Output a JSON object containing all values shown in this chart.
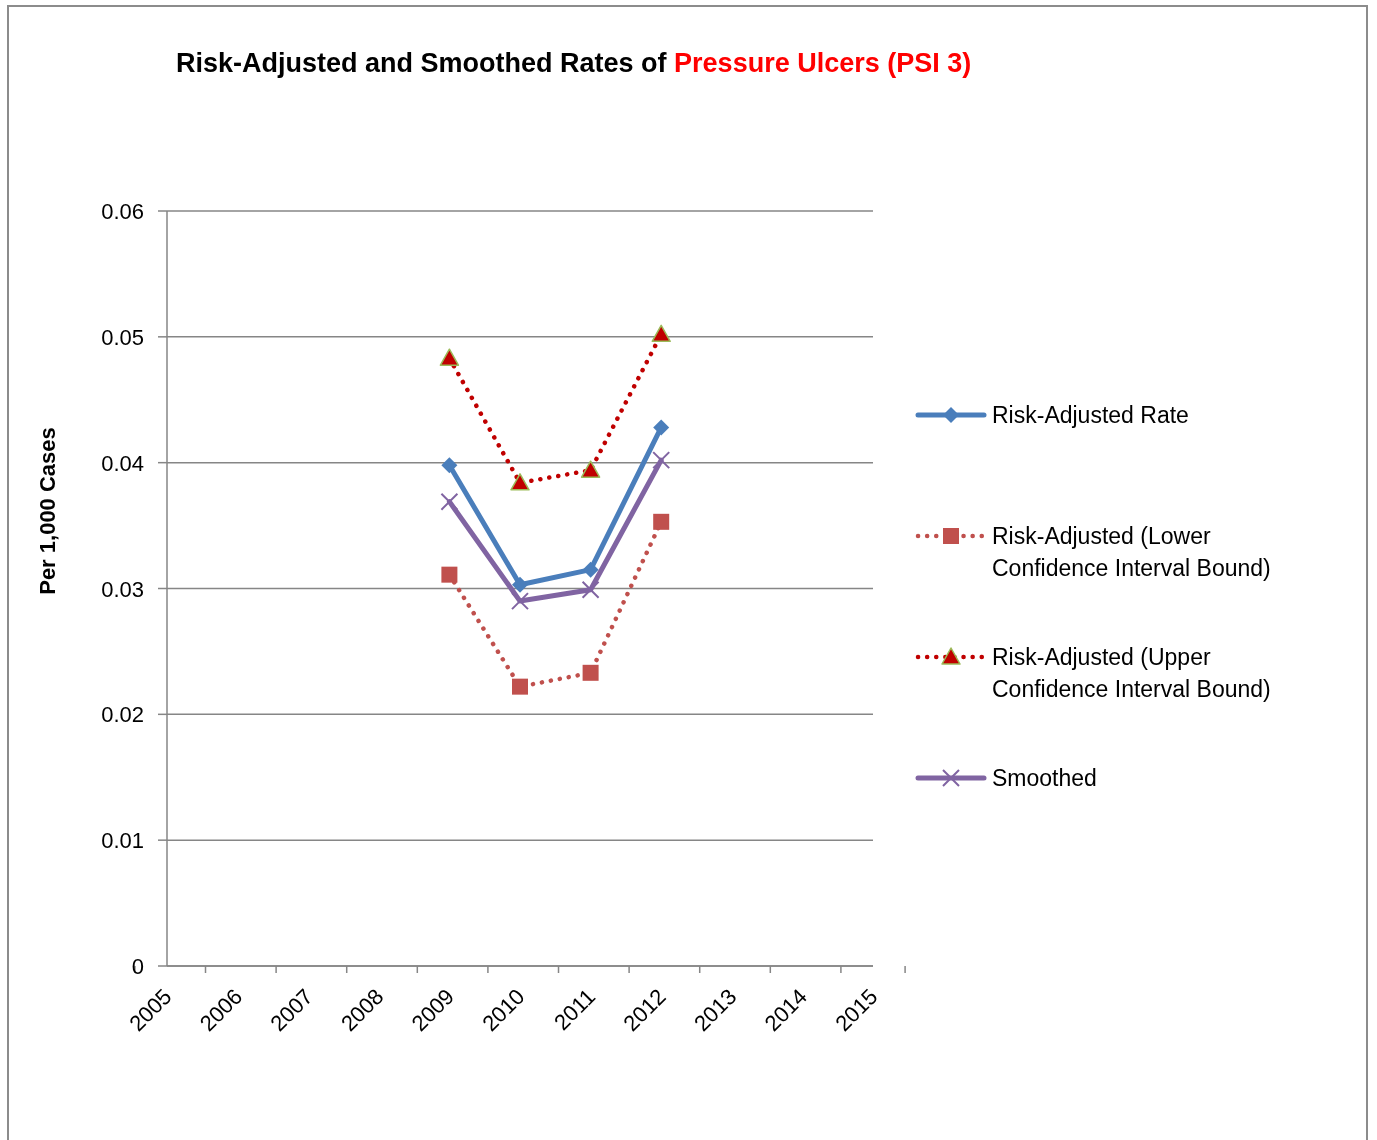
{
  "chart_data": {
    "type": "line",
    "title": "Risk-Adjusted and Smoothed Rates of Pressure Ulcers (PSI 3)",
    "ylabel": "Per 1,000 Cases",
    "categories": [
      "2005",
      "2006",
      "2007",
      "2008",
      "2009",
      "2010",
      "2011",
      "2012",
      "2013",
      "2014",
      "2015"
    ],
    "series": [
      {
        "name": "Risk-Adjusted Rate",
        "color": "#4a7ebb",
        "marker": "diamond",
        "line_style": "solid",
        "values": [
          null,
          null,
          null,
          null,
          0.0398,
          0.0303,
          0.0315,
          0.0428,
          null,
          null,
          null
        ]
      },
      {
        "name": "Risk-Adjusted (Lower Confidence Interval Bound)",
        "color": "#c0504d",
        "marker": "square",
        "line_style": "dotted",
        "values": [
          null,
          null,
          null,
          null,
          0.0311,
          0.0222,
          0.0233,
          0.0353,
          null,
          null,
          null
        ]
      },
      {
        "name": "Risk-Adjusted (Upper Confidence Interval Bound)",
        "color": "#c00000",
        "marker": "triangle",
        "line_style": "dotted",
        "values": [
          null,
          null,
          null,
          null,
          0.0483,
          0.0384,
          0.0394,
          0.0502,
          null,
          null,
          null
        ]
      },
      {
        "name": "Smoothed",
        "color": "#8064a2",
        "marker": "cross",
        "line_style": "solid",
        "values": [
          null,
          null,
          null,
          null,
          0.0369,
          0.029,
          0.0299,
          0.0402,
          null,
          null,
          null
        ]
      }
    ],
    "ylim": [
      0,
      0.06
    ],
    "yticks": [
      0,
      0.01,
      0.02,
      0.03,
      0.04,
      0.05,
      0.06
    ],
    "grid": "y",
    "legend": "right"
  }
}
